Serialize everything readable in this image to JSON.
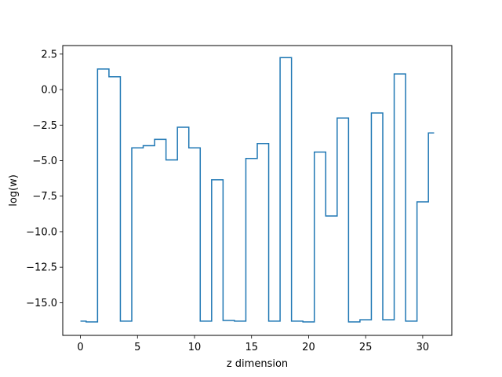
{
  "chart_data": {
    "type": "line",
    "drawstyle": "steps-mid",
    "title": "",
    "xlabel": "z dimension",
    "ylabel": "log(w)",
    "xlim": [
      -1.55,
      32.55
    ],
    "ylim": [
      -17.3,
      3.1
    ],
    "xticks": [
      0,
      5,
      10,
      15,
      20,
      25,
      30
    ],
    "xtick_labels": [
      "0",
      "5",
      "10",
      "15",
      "20",
      "25",
      "30"
    ],
    "yticks": [
      2.5,
      0.0,
      -2.5,
      -5.0,
      -7.5,
      -10.0,
      -12.5,
      -15.0
    ],
    "ytick_labels": [
      "2.5",
      "0.0",
      "−2.5",
      "−5.0",
      "−7.5",
      "−10.0",
      "−12.5",
      "−15.0"
    ],
    "grid": false,
    "series": [
      {
        "color": "#1f77b4",
        "x": [
          0,
          1,
          2,
          3,
          4,
          5,
          6,
          7,
          8,
          9,
          10,
          11,
          12,
          13,
          14,
          15,
          16,
          17,
          18,
          19,
          20,
          21,
          22,
          23,
          24,
          25,
          26,
          27,
          28,
          29,
          30,
          31
        ],
        "y": [
          -16.3,
          -16.35,
          1.45,
          0.9,
          -16.3,
          -4.1,
          -3.95,
          -3.5,
          -4.95,
          -2.65,
          -4.1,
          -16.3,
          -6.35,
          -16.25,
          -16.3,
          -4.85,
          -3.8,
          -16.3,
          2.25,
          -16.3,
          -16.35,
          -4.4,
          -8.9,
          -2.0,
          -16.35,
          -16.2,
          -1.65,
          -16.2,
          1.1,
          -16.3,
          -7.9,
          -3.05
        ]
      }
    ]
  }
}
